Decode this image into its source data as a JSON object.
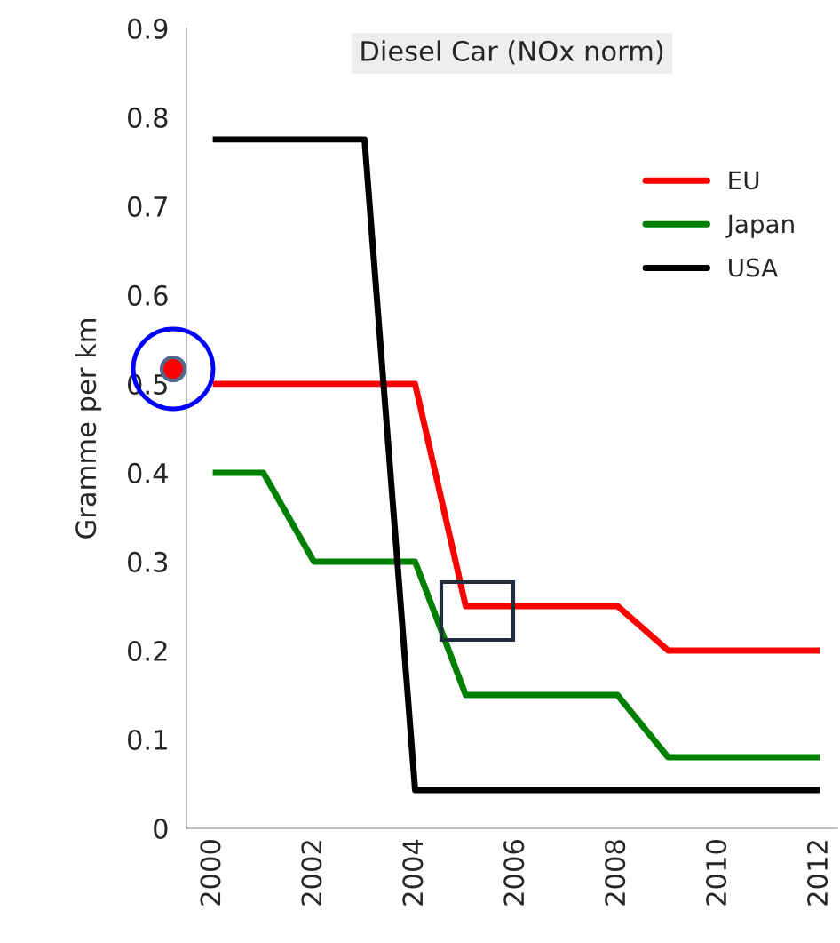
{
  "chart_data": {
    "type": "line",
    "title": "Diesel Car (NOx norm)",
    "ylabel": "Gramme per km",
    "x": [
      2000,
      2001,
      2002,
      2003,
      2004,
      2005,
      2006,
      2007,
      2008,
      2009,
      2010,
      2011,
      2012
    ],
    "series": [
      {
        "name": "EU",
        "color": "#ff0000",
        "values": [
          0.5,
          0.5,
          0.5,
          0.5,
          0.5,
          0.25,
          0.25,
          0.25,
          0.25,
          0.2,
          0.2,
          0.2,
          0.2
        ]
      },
      {
        "name": "Japan",
        "color": "#008000",
        "values": [
          0.4,
          0.4,
          0.3,
          0.3,
          0.3,
          0.15,
          0.15,
          0.15,
          0.15,
          0.08,
          0.08,
          0.08,
          0.08
        ]
      },
      {
        "name": "USA",
        "color": "#000000",
        "values": [
          0.775,
          0.775,
          0.775,
          0.775,
          0.043,
          0.043,
          0.043,
          0.043,
          0.043,
          0.043,
          0.043,
          0.043,
          0.043
        ]
      }
    ],
    "xlim": [
      1999.48,
      2012.35
    ],
    "xticks": [
      2000,
      2002,
      2004,
      2006,
      2008,
      2010,
      2012
    ],
    "ylim": [
      0,
      0.9
    ],
    "yticks": [
      0,
      0.1,
      0.2,
      0.3,
      0.4,
      0.5,
      0.6,
      0.7,
      0.8,
      0.9
    ],
    "grid": false,
    "legend": "top right",
    "marker": "none",
    "line_style": "solid"
  }
}
